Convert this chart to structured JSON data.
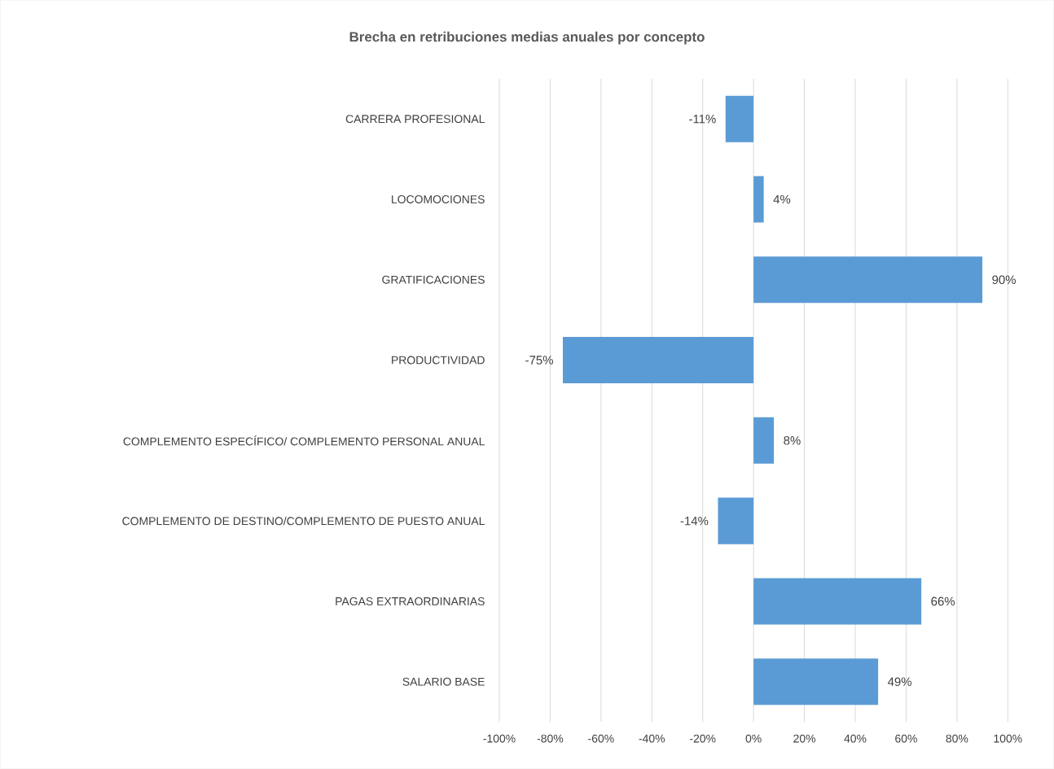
{
  "chart_data": {
    "type": "bar",
    "orientation": "horizontal",
    "title": "Brecha en retribuciones medias anuales por concepto",
    "categories": [
      "CARRERA PROFESIONAL",
      "LOCOMOCIONES",
      "GRATIFICACIONES",
      "PRODUCTIVIDAD",
      "COMPLEMENTO ESPECÍFICO/ COMPLEMENTO PERSONAL ANUAL",
      "COMPLEMENTO DE DESTINO/COMPLEMENTO DE PUESTO ANUAL",
      "PAGAS EXTRAORDINARIAS",
      "SALARIO BASE"
    ],
    "values": [
      -11,
      4,
      90,
      -75,
      8,
      -14,
      66,
      49
    ],
    "value_labels": [
      "-11%",
      "4%",
      "90%",
      "-75%",
      "8%",
      "-14%",
      "66%",
      "49%"
    ],
    "color": "#5b9bd5",
    "xlim": [
      -100,
      100
    ],
    "xticks": [
      {
        "value": -100,
        "label": "-100%"
      },
      {
        "value": -80,
        "label": "-80%"
      },
      {
        "value": -60,
        "label": "-60%"
      },
      {
        "value": -40,
        "label": "-40%"
      },
      {
        "value": -20,
        "label": "-20%"
      },
      {
        "value": 0,
        "label": "0%"
      },
      {
        "value": 20,
        "label": "20%"
      },
      {
        "value": 40,
        "label": "40%"
      },
      {
        "value": 60,
        "label": "60%"
      },
      {
        "value": 80,
        "label": "80%"
      },
      {
        "value": 100,
        "label": "100%"
      }
    ],
    "grid": "x"
  }
}
